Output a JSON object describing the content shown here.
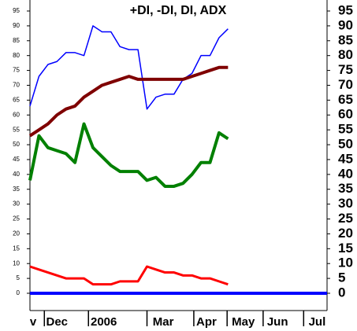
{
  "chart_data": {
    "type": "line",
    "title": "+DI, -DI, DI, ADX",
    "x": [
      0,
      1,
      2,
      3,
      4,
      5,
      6,
      7,
      8,
      9,
      10,
      11,
      12,
      13,
      14,
      15,
      16,
      17,
      18,
      19,
      20,
      21,
      22
    ],
    "xlim": [
      0,
      33
    ],
    "xticks": [
      {
        "value": 0.35,
        "label": "v"
      },
      {
        "value": 3,
        "label": "Dec"
      },
      {
        "value": 8.2,
        "label": "2006"
      },
      {
        "value": 14.8,
        "label": "Mar"
      },
      {
        "value": 19.6,
        "label": "Apr"
      },
      {
        "value": 23.7,
        "label": "May"
      },
      {
        "value": 27.5,
        "label": "Jun"
      },
      {
        "value": 31.9,
        "label": "Jul"
      }
    ],
    "x_minor_ticks": [
      1.6,
      6.5,
      13,
      18.2,
      21.9,
      25.9,
      30.4
    ],
    "ylim": [
      0,
      95
    ],
    "yticks": [
      0,
      5,
      10,
      15,
      20,
      25,
      30,
      35,
      40,
      45,
      50,
      55,
      60,
      65,
      70,
      75,
      80,
      85,
      90,
      95
    ],
    "series": [
      {
        "color": "#0000ff",
        "width": 1.5,
        "values": [
          63,
          73,
          77,
          78,
          81,
          81,
          80,
          90,
          88,
          88,
          83,
          82,
          82,
          62,
          66,
          67,
          67,
          72,
          74,
          80,
          80,
          86,
          89
        ]
      },
      {
        "color": "#7f0000",
        "width": 4,
        "values": [
          53,
          55,
          57,
          60,
          62,
          63,
          66,
          68,
          70,
          71,
          72,
          73,
          72,
          72,
          72,
          72,
          72,
          72,
          73,
          74,
          75,
          76,
          76
        ]
      },
      {
        "color": "#008000",
        "width": 4,
        "values": [
          38,
          53,
          49,
          48,
          47,
          44,
          57,
          49,
          46,
          43,
          41,
          41,
          41,
          38,
          39,
          36,
          36,
          37,
          40,
          44,
          44,
          54,
          52
        ]
      },
      {
        "color": "#ff0000",
        "width": 3,
        "values": [
          9,
          8,
          7,
          6,
          5,
          5,
          5,
          3,
          3,
          3,
          4,
          4,
          4,
          9,
          8,
          7,
          7,
          6,
          6,
          5,
          5,
          4,
          3
        ]
      }
    ],
    "zero_line": {
      "value": 0,
      "color": "#0000ff"
    }
  }
}
